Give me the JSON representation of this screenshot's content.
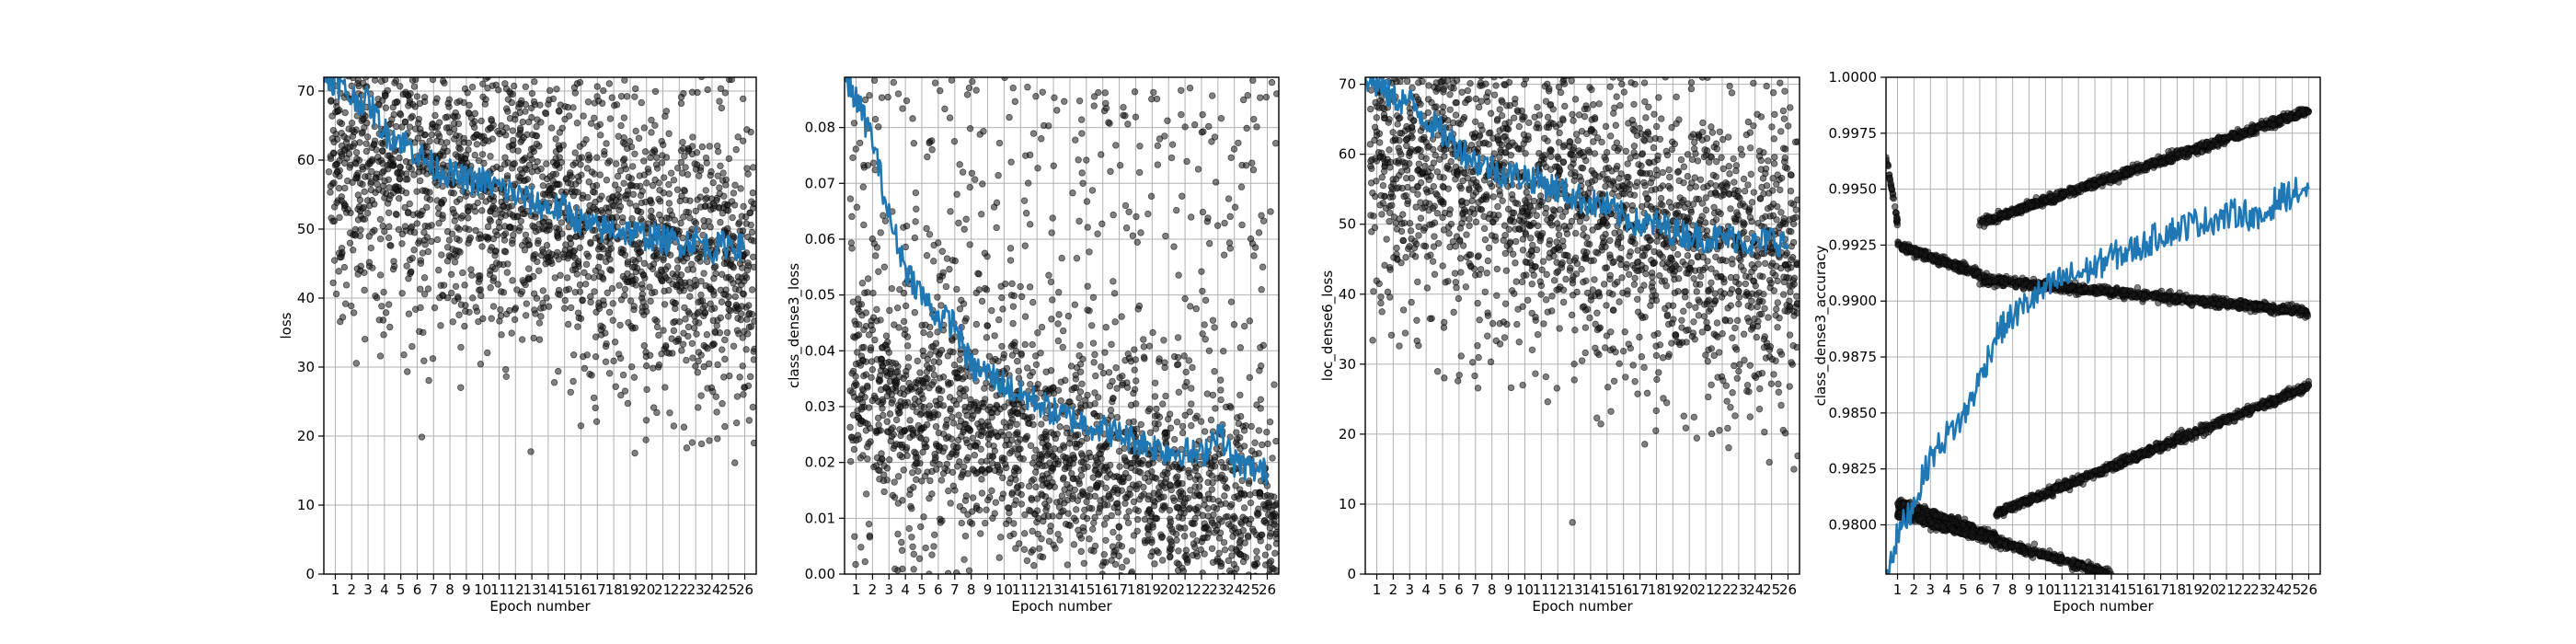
{
  "chart_data": [
    {
      "id": "loss",
      "type": "scatter",
      "xlabel": "Epoch number",
      "ylabel": "loss",
      "xlim": [
        0.3,
        26.7
      ],
      "ylim": [
        0,
        72
      ],
      "yticks": [
        0,
        10,
        20,
        30,
        40,
        50,
        60,
        70
      ],
      "ytick_labels": [
        "0",
        "10",
        "20",
        "30",
        "40",
        "50",
        "60",
        "70"
      ],
      "xticks": [
        1,
        2,
        3,
        4,
        5,
        6,
        7,
        8,
        9,
        10,
        11,
        12,
        13,
        14,
        15,
        16,
        17,
        18,
        19,
        20,
        21,
        22,
        23,
        24,
        25,
        26
      ],
      "grid": true,
      "line_color": "#1f77b4",
      "point_color": "#1a1a1a",
      "scatter_model": {
        "start": 62,
        "end": 44,
        "spread": 9.5,
        "outlier": 12,
        "per_epoch": 85
      },
      "smoothed": [
        {
          "x": 0.3,
          "y": 72
        },
        {
          "x": 1,
          "y": 71.5
        },
        {
          "x": 2,
          "y": 69
        },
        {
          "x": 3,
          "y": 68.5
        },
        {
          "x": 4,
          "y": 64
        },
        {
          "x": 5,
          "y": 63
        },
        {
          "x": 6,
          "y": 61
        },
        {
          "x": 7,
          "y": 59
        },
        {
          "x": 8,
          "y": 58
        },
        {
          "x": 9,
          "y": 57
        },
        {
          "x": 10,
          "y": 57
        },
        {
          "x": 11,
          "y": 56
        },
        {
          "x": 12,
          "y": 55
        },
        {
          "x": 13,
          "y": 54
        },
        {
          "x": 14,
          "y": 53
        },
        {
          "x": 15,
          "y": 53
        },
        {
          "x": 16,
          "y": 51
        },
        {
          "x": 17,
          "y": 50
        },
        {
          "x": 18,
          "y": 50
        },
        {
          "x": 19,
          "y": 49.5
        },
        {
          "x": 20,
          "y": 49
        },
        {
          "x": 21,
          "y": 48.5
        },
        {
          "x": 22,
          "y": 48
        },
        {
          "x": 23,
          "y": 48.5
        },
        {
          "x": 24,
          "y": 47
        },
        {
          "x": 25,
          "y": 48
        },
        {
          "x": 26,
          "y": 47
        }
      ]
    },
    {
      "id": "class_loss",
      "type": "scatter",
      "xlabel": "Epoch number",
      "ylabel": "class_dense3_loss",
      "xlim": [
        0.3,
        26.7
      ],
      "ylim": [
        0,
        0.089
      ],
      "yticks": [
        0,
        0.01,
        0.02,
        0.03,
        0.04,
        0.05,
        0.06,
        0.07,
        0.08
      ],
      "ytick_labels": [
        "0.00",
        "0.01",
        "0.02",
        "0.03",
        "0.04",
        "0.05",
        "0.06",
        "0.07",
        "0.08"
      ],
      "xticks": [
        1,
        2,
        3,
        4,
        5,
        6,
        7,
        8,
        9,
        10,
        11,
        12,
        13,
        14,
        15,
        16,
        17,
        18,
        19,
        20,
        21,
        22,
        23,
        24,
        25,
        26
      ],
      "grid": true,
      "line_color": "#1f77b4",
      "point_color": "#1a1a1a",
      "scatter_model": {
        "start": 0.035,
        "end": 0.008,
        "spread": 0.009,
        "outlier": 0.045,
        "per_epoch": 85
      },
      "smoothed": [
        {
          "x": 0.3,
          "y": 0.089
        },
        {
          "x": 1,
          "y": 0.085
        },
        {
          "x": 2,
          "y": 0.078
        },
        {
          "x": 3,
          "y": 0.064
        },
        {
          "x": 4,
          "y": 0.055
        },
        {
          "x": 5,
          "y": 0.05
        },
        {
          "x": 6,
          "y": 0.046
        },
        {
          "x": 7,
          "y": 0.045
        },
        {
          "x": 8,
          "y": 0.037
        },
        {
          "x": 9,
          "y": 0.036
        },
        {
          "x": 10,
          "y": 0.034
        },
        {
          "x": 11,
          "y": 0.032
        },
        {
          "x": 12,
          "y": 0.031
        },
        {
          "x": 13,
          "y": 0.029
        },
        {
          "x": 14,
          "y": 0.028
        },
        {
          "x": 15,
          "y": 0.027
        },
        {
          "x": 16,
          "y": 0.026
        },
        {
          "x": 17,
          "y": 0.025
        },
        {
          "x": 18,
          "y": 0.024
        },
        {
          "x": 19,
          "y": 0.023
        },
        {
          "x": 20,
          "y": 0.022
        },
        {
          "x": 21,
          "y": 0.022
        },
        {
          "x": 22,
          "y": 0.021
        },
        {
          "x": 23,
          "y": 0.026
        },
        {
          "x": 24,
          "y": 0.02
        },
        {
          "x": 25,
          "y": 0.019
        },
        {
          "x": 26,
          "y": 0.018
        }
      ]
    },
    {
      "id": "loc_loss",
      "type": "scatter",
      "xlabel": "Epoch number",
      "ylabel": "loc_dense6_loss",
      "xlim": [
        0.3,
        26.7
      ],
      "ylim": [
        0,
        71
      ],
      "yticks": [
        0,
        10,
        20,
        30,
        40,
        50,
        60,
        70
      ],
      "ytick_labels": [
        "0",
        "10",
        "20",
        "30",
        "40",
        "50",
        "60",
        "70"
      ],
      "xticks": [
        1,
        2,
        3,
        4,
        5,
        6,
        7,
        8,
        9,
        10,
        11,
        12,
        13,
        14,
        15,
        16,
        17,
        18,
        19,
        20,
        21,
        22,
        23,
        24,
        25,
        26
      ],
      "grid": true,
      "line_color": "#1f77b4",
      "point_color": "#1a1a1a",
      "scatter_model": {
        "start": 61,
        "end": 44,
        "spread": 9.5,
        "outlier": 12,
        "per_epoch": 85
      },
      "smoothed": [
        {
          "x": 0.3,
          "y": 71
        },
        {
          "x": 1,
          "y": 70
        },
        {
          "x": 2,
          "y": 68
        },
        {
          "x": 3,
          "y": 67.5
        },
        {
          "x": 4,
          "y": 65
        },
        {
          "x": 5,
          "y": 63
        },
        {
          "x": 6,
          "y": 61
        },
        {
          "x": 7,
          "y": 59
        },
        {
          "x": 8,
          "y": 58
        },
        {
          "x": 9,
          "y": 57
        },
        {
          "x": 10,
          "y": 57
        },
        {
          "x": 11,
          "y": 56
        },
        {
          "x": 12,
          "y": 55
        },
        {
          "x": 13,
          "y": 54
        },
        {
          "x": 14,
          "y": 53
        },
        {
          "x": 15,
          "y": 52.5
        },
        {
          "x": 16,
          "y": 51
        },
        {
          "x": 17,
          "y": 50
        },
        {
          "x": 18,
          "y": 50
        },
        {
          "x": 19,
          "y": 49
        },
        {
          "x": 20,
          "y": 48.5
        },
        {
          "x": 21,
          "y": 48
        },
        {
          "x": 22,
          "y": 48
        },
        {
          "x": 23,
          "y": 48
        },
        {
          "x": 24,
          "y": 47
        },
        {
          "x": 25,
          "y": 48
        },
        {
          "x": 26,
          "y": 47
        }
      ]
    },
    {
      "id": "class_acc",
      "type": "scatter",
      "xlabel": "Epoch number",
      "ylabel": "class_dense3_accuracy",
      "xlim": [
        0.3,
        26.7
      ],
      "ylim": [
        0.9778,
        1.0
      ],
      "yticks": [
        0.98,
        0.9825,
        0.985,
        0.9875,
        0.99,
        0.9925,
        0.995,
        0.9975,
        1.0
      ],
      "ytick_labels": [
        "0.9800",
        "0.9825",
        "0.9850",
        "0.9875",
        "0.9900",
        "0.9925",
        "0.9950",
        "0.9975",
        "1.0000"
      ],
      "xticks": [
        1,
        2,
        3,
        4,
        5,
        6,
        7,
        8,
        9,
        10,
        11,
        12,
        13,
        14,
        15,
        16,
        17,
        18,
        19,
        20,
        21,
        22,
        23,
        24,
        25,
        26
      ],
      "grid": true,
      "line_color": "#1f77b4",
      "point_color": "#1a1a1a",
      "bands": [
        {
          "x0": 0.3,
          "x1": 1.0,
          "y0": 0.9965,
          "y1": 0.9935
        },
        {
          "x0": 1.0,
          "x1": 6.0,
          "y0": 0.9925,
          "y1": 0.9912
        },
        {
          "x0": 6.0,
          "x1": 26.0,
          "y0": 0.991,
          "y1": 0.9895
        },
        {
          "x0": 6.0,
          "x1": 26.0,
          "y0": 0.9935,
          "y1": 0.9985
        },
        {
          "x0": 1.0,
          "x1": 7.0,
          "y0": 0.981,
          "y1": 0.9795
        },
        {
          "x0": 7.0,
          "x1": 26.0,
          "y0": 0.9805,
          "y1": 0.9862
        },
        {
          "x0": 1.0,
          "x1": 14.0,
          "y0": 0.9805,
          "y1": 0.9778
        }
      ],
      "smoothed": [
        {
          "x": 0.3,
          "y": 0.9778
        },
        {
          "x": 1,
          "y": 0.9795
        },
        {
          "x": 2,
          "y": 0.981
        },
        {
          "x": 3,
          "y": 0.983
        },
        {
          "x": 4,
          "y": 0.984
        },
        {
          "x": 5,
          "y": 0.9848
        },
        {
          "x": 6,
          "y": 0.9865
        },
        {
          "x": 7,
          "y": 0.9885
        },
        {
          "x": 8,
          "y": 0.9893
        },
        {
          "x": 9,
          "y": 0.99
        },
        {
          "x": 10,
          "y": 0.9905
        },
        {
          "x": 11,
          "y": 0.991
        },
        {
          "x": 12,
          "y": 0.9912
        },
        {
          "x": 13,
          "y": 0.9915
        },
        {
          "x": 14,
          "y": 0.992
        },
        {
          "x": 15,
          "y": 0.9922
        },
        {
          "x": 16,
          "y": 0.9925
        },
        {
          "x": 17,
          "y": 0.993
        },
        {
          "x": 18,
          "y": 0.9932
        },
        {
          "x": 19,
          "y": 0.9935
        },
        {
          "x": 20,
          "y": 0.9936
        },
        {
          "x": 21,
          "y": 0.9938
        },
        {
          "x": 22,
          "y": 0.994
        },
        {
          "x": 23,
          "y": 0.9935
        },
        {
          "x": 24,
          "y": 0.9945
        },
        {
          "x": 25,
          "y": 0.9948
        },
        {
          "x": 26,
          "y": 0.995
        }
      ]
    }
  ]
}
